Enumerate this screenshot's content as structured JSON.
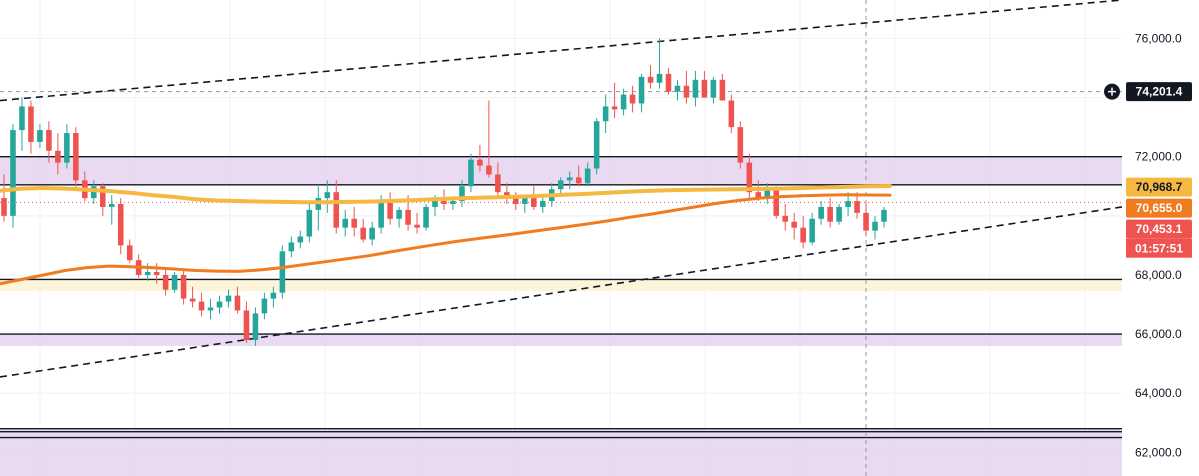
{
  "chart_data": {
    "type": "candlestick",
    "y_axis": {
      "min": 61200,
      "max": 77300,
      "ticks": [
        "62,000.0",
        "64,000.0",
        "66,000.0",
        "68,000.0",
        "72,000.0",
        "76,000.0"
      ],
      "tick_values": [
        62000,
        64000,
        66000,
        68000,
        72000,
        76000
      ]
    },
    "colors": {
      "up": "#26a69a",
      "down": "#ef5350",
      "ma_yellow": "#f5b942",
      "ma_orange": "#f07b20",
      "zone_fill": "#e6d3ee",
      "zone_yellow": "#fdf3d4",
      "grid": "#eef0f3"
    },
    "candles": [
      [
        70600,
        71400,
        69800,
        70000
      ],
      [
        70000,
        73100,
        69600,
        72900
      ],
      [
        72900,
        74000,
        72200,
        73700
      ],
      [
        73700,
        73900,
        72100,
        72500
      ],
      [
        72500,
        73100,
        72300,
        72900
      ],
      [
        72900,
        73200,
        71800,
        72200
      ],
      [
        72200,
        72800,
        71400,
        71800
      ],
      [
        71800,
        73100,
        71600,
        72800
      ],
      [
        72800,
        73000,
        70900,
        71200
      ],
      [
        71200,
        71500,
        70500,
        70600
      ],
      [
        70600,
        71200,
        70400,
        71000
      ],
      [
        71000,
        71100,
        70000,
        70300
      ],
      [
        70300,
        70700,
        69700,
        70400
      ],
      [
        70400,
        70600,
        68700,
        69000
      ],
      [
        69000,
        69200,
        68400,
        68500
      ],
      [
        68500,
        68700,
        67900,
        68000
      ],
      [
        68000,
        68400,
        67800,
        68100
      ],
      [
        68100,
        68400,
        67700,
        68000
      ],
      [
        68000,
        68200,
        67300,
        67500
      ],
      [
        67500,
        68100,
        67400,
        68000
      ],
      [
        68000,
        68200,
        67000,
        67200
      ],
      [
        67200,
        67600,
        66900,
        67100
      ],
      [
        67100,
        67400,
        66600,
        66800
      ],
      [
        66800,
        67200,
        66500,
        66900
      ],
      [
        66900,
        67300,
        66700,
        67100
      ],
      [
        67100,
        67500,
        66900,
        67300
      ],
      [
        67300,
        67600,
        66700,
        66800
      ],
      [
        66800,
        67100,
        65700,
        65800
      ],
      [
        65800,
        66900,
        65600,
        66700
      ],
      [
        66700,
        67400,
        66500,
        67200
      ],
      [
        67200,
        67600,
        66900,
        67400
      ],
      [
        67400,
        69000,
        67200,
        68800
      ],
      [
        68800,
        69300,
        68600,
        69100
      ],
      [
        69100,
        69500,
        68900,
        69300
      ],
      [
        69300,
        70400,
        69100,
        70200
      ],
      [
        70200,
        71000,
        69500,
        70600
      ],
      [
        70600,
        71200,
        70100,
        70800
      ],
      [
        70800,
        71200,
        69400,
        69600
      ],
      [
        69600,
        70200,
        69300,
        69900
      ],
      [
        69900,
        70300,
        69300,
        69600
      ],
      [
        69600,
        69900,
        69100,
        69200
      ],
      [
        69200,
        69800,
        69000,
        69600
      ],
      [
        69600,
        70700,
        69400,
        70500
      ],
      [
        70500,
        70800,
        69700,
        69900
      ],
      [
        69900,
        70300,
        69600,
        70200
      ],
      [
        70200,
        70700,
        69500,
        69700
      ],
      [
        69700,
        70100,
        69400,
        69600
      ],
      [
        69600,
        70400,
        69500,
        70300
      ],
      [
        70300,
        70700,
        70000,
        70500
      ],
      [
        70500,
        70900,
        70200,
        70400
      ],
      [
        70400,
        70600,
        70200,
        70500
      ],
      [
        70500,
        71200,
        70300,
        71000
      ],
      [
        71000,
        72100,
        70800,
        71900
      ],
      [
        71900,
        72400,
        71500,
        71700
      ],
      [
        71700,
        73900,
        71300,
        71400
      ],
      [
        71400,
        71800,
        70600,
        70800
      ],
      [
        70800,
        71100,
        70400,
        70600
      ],
      [
        70600,
        70800,
        70200,
        70400
      ],
      [
        70400,
        70700,
        70100,
        70600
      ],
      [
        70600,
        71000,
        70200,
        70300
      ],
      [
        70300,
        70700,
        70100,
        70500
      ],
      [
        70500,
        71100,
        70300,
        70900
      ],
      [
        70900,
        71300,
        70700,
        71200
      ],
      [
        71200,
        71500,
        70900,
        71300
      ],
      [
        71300,
        71700,
        71000,
        71100
      ],
      [
        71100,
        71800,
        71000,
        71600
      ],
      [
        71600,
        73300,
        71400,
        73200
      ],
      [
        73200,
        74100,
        72800,
        73700
      ],
      [
        73700,
        74500,
        73300,
        73600
      ],
      [
        73600,
        74300,
        73400,
        74100
      ],
      [
        74100,
        74400,
        73500,
        73800
      ],
      [
        73800,
        74800,
        73500,
        74700
      ],
      [
        74700,
        75100,
        74300,
        74500
      ],
      [
        74500,
        76000,
        74300,
        74800
      ],
      [
        74800,
        75000,
        74100,
        74200
      ],
      [
        74200,
        74600,
        73900,
        74400
      ],
      [
        74400,
        74900,
        73800,
        74000
      ],
      [
        74000,
        74900,
        73700,
        74600
      ],
      [
        74600,
        74900,
        74000,
        74000
      ],
      [
        74000,
        74700,
        73800,
        74600
      ],
      [
        74600,
        74800,
        73900,
        73900
      ],
      [
        73900,
        74100,
        72800,
        73000
      ],
      [
        73000,
        73200,
        71600,
        71800
      ],
      [
        71800,
        72100,
        70600,
        70800
      ],
      [
        70800,
        71200,
        70500,
        70600
      ],
      [
        70600,
        71100,
        70400,
        70900
      ],
      [
        70900,
        71000,
        69900,
        70000
      ],
      [
        70000,
        70400,
        69500,
        69800
      ],
      [
        69800,
        70100,
        69200,
        69600
      ],
      [
        69600,
        70000,
        68900,
        69100
      ],
      [
        69100,
        70100,
        69000,
        69900
      ],
      [
        69900,
        70500,
        69700,
        70300
      ],
      [
        70300,
        70600,
        69600,
        69800
      ],
      [
        69800,
        70400,
        69700,
        70300
      ],
      [
        70300,
        70800,
        70000,
        70500
      ],
      [
        70500,
        70800,
        69900,
        70100
      ],
      [
        70100,
        70400,
        69300,
        69500
      ],
      [
        69500,
        70000,
        69200,
        69800
      ],
      [
        69800,
        70300,
        69600,
        70200
      ]
    ],
    "series": [
      {
        "name": "",
        "color": "#f5b942",
        "values": [
          70850,
          70920,
          70940,
          70920,
          70880,
          70840,
          70780,
          70700,
          70640,
          70560,
          70520,
          70500,
          70480,
          70470,
          70460,
          70460,
          70470,
          70480,
          70500,
          70530,
          70560,
          70590,
          70610,
          70630,
          70650,
          70680,
          70710,
          70740,
          70780,
          70820,
          70850,
          70870,
          70880,
          70890,
          70900,
          70910,
          70920,
          70940,
          70960,
          70980,
          71000,
          71010
        ]
      },
      {
        "name": "",
        "color": "#f07b20",
        "values": [
          67700,
          67850,
          68000,
          68150,
          68250,
          68300,
          68280,
          68250,
          68200,
          68150,
          68130,
          68120,
          68170,
          68250,
          68350,
          68450,
          68550,
          68650,
          68780,
          68900,
          69020,
          69130,
          69230,
          69320,
          69420,
          69520,
          69620,
          69720,
          69830,
          69950,
          70060,
          70180,
          70300,
          70420,
          70520,
          70600,
          70650,
          70680,
          70700,
          70710,
          70705,
          70700
        ]
      }
    ],
    "zones": [
      {
        "type": "purple",
        "top": 72000,
        "bottom": 71050
      },
      {
        "type": "yellow",
        "top": 67850,
        "bottom": 67450
      },
      {
        "type": "purple",
        "top": 66000,
        "bottom": 65600
      },
      {
        "type": "purple",
        "top": 62800,
        "bottom": 61200
      }
    ],
    "h_lines": [
      72000,
      71050,
      67850,
      66000,
      62800,
      62700,
      62500
    ],
    "trendlines": [
      {
        "from": [
          0,
          73900
        ],
        "to": [
          1,
          77300
        ]
      },
      {
        "from": [
          0,
          64550
        ],
        "to": [
          1,
          70300
        ]
      }
    ],
    "price_line": 70453.1,
    "crosshair_price": 74201.4,
    "badges": [
      {
        "label": "74,201.4",
        "value": 74201.4,
        "bg": "#131722",
        "fg": "#ffffff"
      },
      {
        "label": "70,968.7",
        "value": 70968.7,
        "bg": "#f5b942",
        "fg": "#131722"
      },
      {
        "label": "70,655.0",
        "value": 70655.0,
        "bg": "#f07b20",
        "fg": "#ffffff"
      },
      {
        "label": "70,453.1",
        "value": 70453.1,
        "bg": "#ef5350",
        "fg": "#ffffff"
      }
    ],
    "countdown": "01:57:51",
    "ylim": [
      61200,
      77300
    ]
  }
}
